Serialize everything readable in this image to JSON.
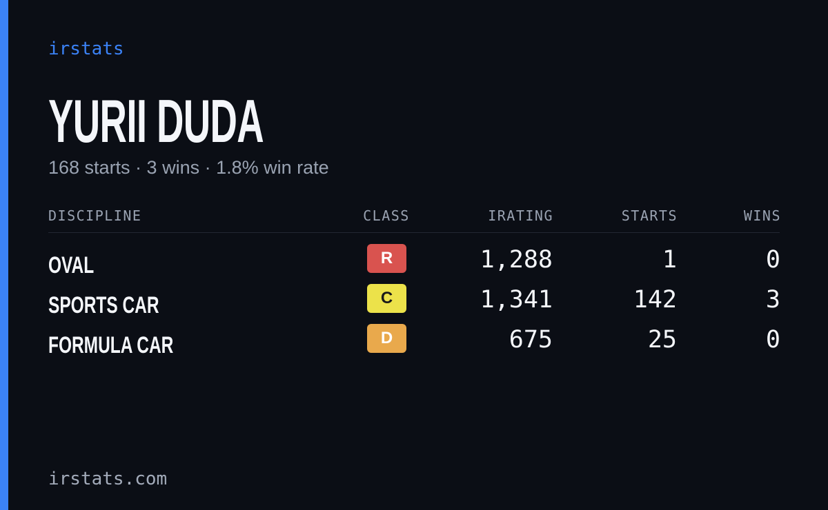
{
  "brand": "irstats",
  "driver": {
    "name": "YURII DUDA",
    "summary": "168 starts · 3 wins · 1.8% win rate"
  },
  "table": {
    "headers": [
      "DISCIPLINE",
      "CLASS",
      "IRATING",
      "STARTS",
      "WINS"
    ],
    "rows": [
      {
        "discipline": "OVAL",
        "class": "R",
        "class_color": "#d9534f",
        "class_text_color": "#ffffff",
        "irating": "1,288",
        "starts": "1",
        "wins": "0"
      },
      {
        "discipline": "SPORTS CAR",
        "class": "C",
        "class_color": "#ece24a",
        "class_text_color": "#1a1a1a",
        "irating": "1,341",
        "starts": "142",
        "wins": "3"
      },
      {
        "discipline": "FORMULA CAR",
        "class": "D",
        "class_color": "#e9a94c",
        "class_text_color": "#ffffff",
        "irating": "675",
        "starts": "25",
        "wins": "0"
      }
    ]
  },
  "footer": "irstats.com"
}
